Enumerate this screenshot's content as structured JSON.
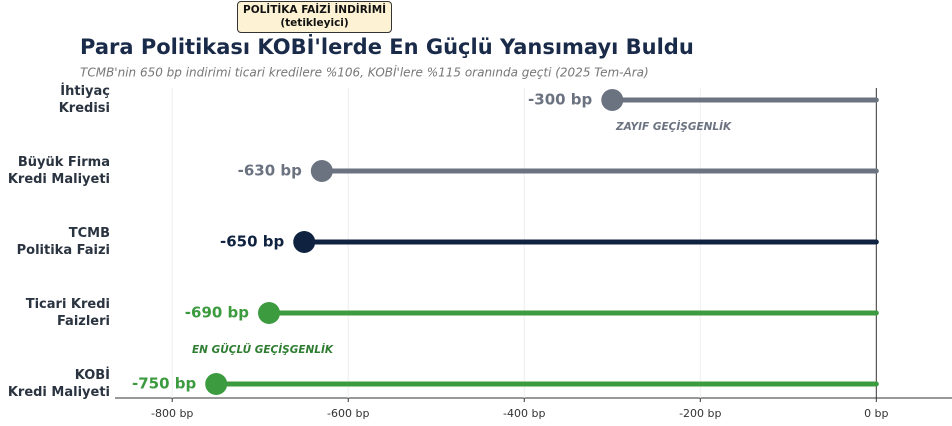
{
  "chart_data": {
    "type": "lollipop",
    "title": "Para Politikası KOBİ'lerde En Güçlü Yansımayı Buldu",
    "subtitle": "TCMB'nin 650 bp indirimi ticari kredilere %106, KOBİ'lere %115 oranında geçti (2025 Tem-Ara)",
    "categories": [
      "İhtiyaç\nKredisi",
      "Büyük Firma\nKredi Maliyeti",
      "TCMB\nPolitika Faizi",
      "Ticari Kredi\nFaizleri",
      "KOBİ\nKredi Maliyeti"
    ],
    "values": [
      -300,
      -630,
      -650,
      -690,
      -750
    ],
    "value_labels": [
      "-300 bp",
      "-630 bp",
      "-650 bp",
      "-690 bp",
      "-750 bp"
    ],
    "colors": [
      "#6b7280",
      "#6b7280",
      "#0f2341",
      "#3c9a3f",
      "#3c9a3f"
    ],
    "xlim": [
      -865,
      86
    ],
    "xticks": [
      {
        "value": -800,
        "label": "-800 bp"
      },
      {
        "value": -600,
        "label": "-600 bp"
      },
      {
        "value": -400,
        "label": "-400 bp"
      },
      {
        "value": -200,
        "label": "-200 bp"
      },
      {
        "value": 0,
        "label": "0 bp"
      }
    ],
    "grid": true,
    "annotations": [
      "POLİTİKA FAİZİ İNDİRİMİ\n(tetikleyici)",
      "ZAYIF GEÇİŞGENLİK",
      "EN GÜÇLÜ GEÇİŞGENLİK"
    ]
  }
}
